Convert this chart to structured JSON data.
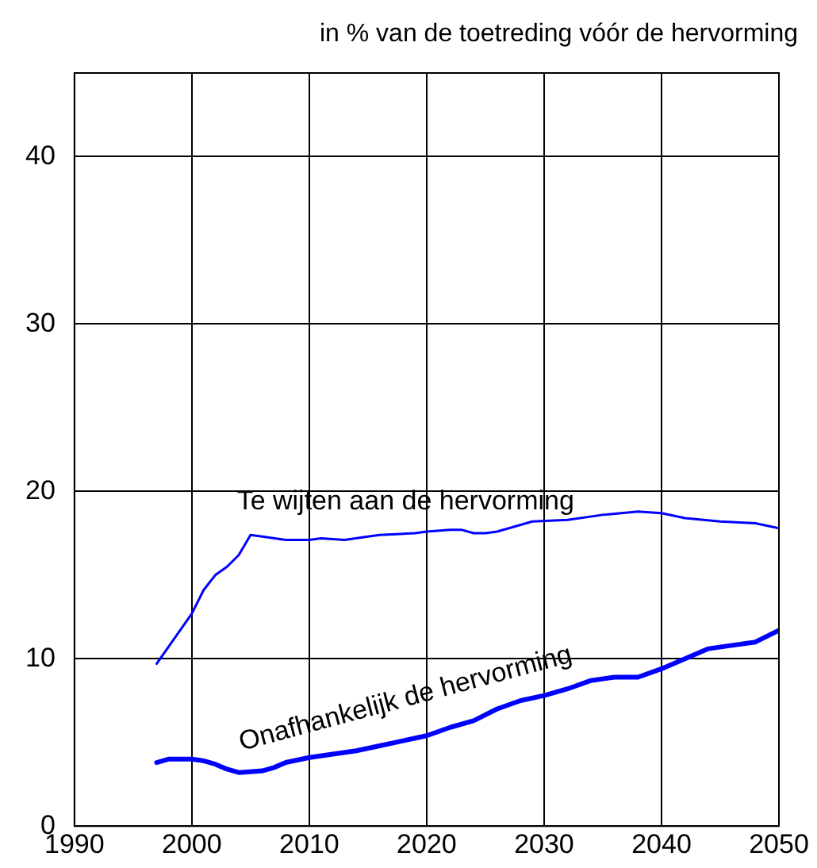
{
  "chart_data": {
    "type": "line",
    "ylabel": "in % van de toetreding vóór de hervorming",
    "xlim": [
      1990,
      2050
    ],
    "xticks": [
      1990,
      2000,
      2010,
      2020,
      2030,
      2040,
      2050
    ],
    "ylim": [
      0,
      45
    ],
    "yticks": [
      0,
      10,
      20,
      30,
      40
    ],
    "grid": true,
    "legend": false,
    "marker": "none",
    "line_style": "solid",
    "series": [
      {
        "name": "Te wijten aan de hervorming",
        "color": "#0000ff",
        "x": [
          1997,
          2000,
          2001,
          2002,
          2003,
          2004,
          2005,
          2006,
          2008,
          2010,
          2011,
          2013,
          2015,
          2016,
          2019,
          2020,
          2022,
          2023,
          2024,
          2025,
          2026,
          2028,
          2029,
          2032,
          2035,
          2038,
          2040,
          2042,
          2045,
          2048,
          2050
        ],
        "values": [
          9.7,
          12.7,
          14.1,
          15.0,
          15.5,
          16.2,
          17.4,
          17.3,
          17.1,
          17.1,
          17.2,
          17.1,
          17.3,
          17.4,
          17.5,
          17.6,
          17.7,
          17.7,
          17.5,
          17.5,
          17.6,
          18.0,
          18.2,
          18.3,
          18.6,
          18.8,
          18.7,
          18.4,
          18.2,
          18.1,
          17.8
        ]
      },
      {
        "name": "Onafhankelijk de hervorming",
        "color": "#0000ff",
        "x": [
          1997,
          1998,
          2000,
          2001,
          2002,
          2003,
          2004,
          2006,
          2007,
          2008,
          2010,
          2012,
          2014,
          2016,
          2018,
          2020,
          2022,
          2024,
          2026,
          2028,
          2030,
          2032,
          2034,
          2036,
          2038,
          2040,
          2042,
          2044,
          2046,
          2048,
          2050
        ],
        "values": [
          3.8,
          4.0,
          4.0,
          3.9,
          3.7,
          3.4,
          3.2,
          3.3,
          3.5,
          3.8,
          4.1,
          4.3,
          4.5,
          4.8,
          5.1,
          5.4,
          5.9,
          6.3,
          7.0,
          7.5,
          7.8,
          8.2,
          8.7,
          8.9,
          8.9,
          9.4,
          10.0,
          10.6,
          10.8,
          11.0,
          11.7
        ]
      }
    ]
  }
}
